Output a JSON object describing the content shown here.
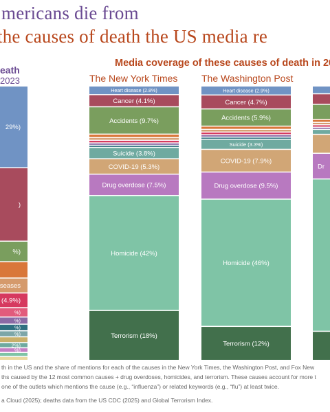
{
  "title_line1": "mericans die from",
  "title_line2": "the causes of death the US media re",
  "left_heading": "eath",
  "left_subheading": "2023",
  "media_heading": "Media coverage of these causes of death in 20",
  "notes": [
    "th in the US and the share of mentions for each of the causes in the New York Times, the Washington Post, and Fox New",
    "ths caused by the 12 most common causes + drug overdoses, homicides, and terrorism. These causes account for more t",
    "one of the outlets which mentions the cause (e.g., “influenza”) or related keywords (e.g., “flu”) at least twice.",
    "a Cloud (2025); deaths data from the US CDC (2025) and Global Terrorism Index."
  ],
  "colors": {
    "heart": "#7093c4",
    "cancer": "#a84b5d",
    "accidents": "#7a9e5e",
    "suicide": "#6faaa0",
    "covid": "#d1a676",
    "overdose": "#b879c0",
    "homicide": "#7fc4a6",
    "terrorism": "#42704c",
    "alzheimers": "#d9773a",
    "kidney": "#d59a6c",
    "diabetes": "#d6395f"
  },
  "chart_data": {
    "type": "stacked-bar",
    "unit": "%",
    "columns": [
      {
        "name": "Deaths",
        "segments": [
          {
            "label": "29%",
            "value": 29,
            "color": "heart",
            "text": "29%)"
          },
          {
            "label": "",
            "value": 26,
            "color": "cancer",
            "text": ")"
          },
          {
            "label": "",
            "value": 7,
            "color": "accidents",
            "text": "%)"
          },
          {
            "label": "",
            "value": 5.5,
            "color": "alzheimers",
            "text": ""
          },
          {
            "label": "",
            "value": 5,
            "color": "kidney",
            "text": "iseases"
          },
          {
            "label": "4.9%",
            "value": 4.9,
            "color": "diabetes",
            "text": "e (4.9%)"
          },
          {
            "label": "",
            "value": 3,
            "color": "#e25b7c",
            "text": "%)"
          },
          {
            "label": "",
            "value": 2.2,
            "color": "#8b6aa5",
            "text": "%)"
          },
          {
            "label": "",
            "value": 2,
            "color": "#2f6f80",
            "text": "%)"
          },
          {
            "label": "",
            "value": 1.8,
            "color": "#7ca6a8",
            "text": "%)"
          },
          {
            "label": "",
            "value": 1.7,
            "color": "#c9b06b",
            "text": ""
          },
          {
            "label": "",
            "value": 1.5,
            "color": "suicide",
            "text": "2%)"
          },
          {
            "label": "",
            "value": 1.3,
            "color": "#c47fc4",
            "text": "%)"
          },
          {
            "label": "",
            "value": 1.1,
            "color": "homicide",
            "text": ""
          },
          {
            "label": "",
            "value": 1,
            "color": "#ead9a0",
            "text": ""
          }
        ]
      },
      {
        "name": "The New York Times",
        "segments": [
          {
            "label": "Heart disease",
            "value": 2.8,
            "color": "heart",
            "text": "Heart disease (2.8%)"
          },
          {
            "label": "Cancer",
            "value": 4.1,
            "color": "cancer",
            "text": "Cancer (4.1%)"
          },
          {
            "label": "Accidents",
            "value": 9.7,
            "color": "accidents",
            "text": "Accidents (9.7%)"
          },
          {
            "label": "",
            "value": 0.9,
            "color": "alzheimers",
            "text": ""
          },
          {
            "label": "",
            "value": 0.6,
            "color": "kidney",
            "text": ""
          },
          {
            "label": "",
            "value": 0.6,
            "color": "diabetes",
            "text": ""
          },
          {
            "label": "",
            "value": 0.5,
            "color": "#8b6aa5",
            "text": ""
          },
          {
            "label": "",
            "value": 0.4,
            "color": "#2f6f80",
            "text": ""
          },
          {
            "label": "Suicide",
            "value": 3.8,
            "color": "suicide",
            "text": "Suicide (3.8%)"
          },
          {
            "label": "COVID-19",
            "value": 5.3,
            "color": "covid",
            "text": "COVID-19 (5.3%)"
          },
          {
            "label": "Drug overdose",
            "value": 7.5,
            "color": "overdose",
            "text": "Drug overdose (7.5%)"
          },
          {
            "label": "Homicide",
            "value": 42,
            "color": "homicide",
            "text": "Homicide (42%)"
          },
          {
            "label": "Terrorism",
            "value": 18,
            "color": "terrorism",
            "text": "Terrorism (18%)"
          }
        ]
      },
      {
        "name": "The Washington Post",
        "segments": [
          {
            "label": "Heart disease",
            "value": 2.9,
            "color": "heart",
            "text": "Heart disease (2.9%)"
          },
          {
            "label": "Cancer",
            "value": 4.7,
            "color": "cancer",
            "text": "Cancer (4.7%)"
          },
          {
            "label": "Accidents",
            "value": 5.9,
            "color": "accidents",
            "text": "Accidents (5.9%)"
          },
          {
            "label": "",
            "value": 0.8,
            "color": "alzheimers",
            "text": ""
          },
          {
            "label": "",
            "value": 0.6,
            "color": "kidney",
            "text": ""
          },
          {
            "label": "",
            "value": 0.6,
            "color": "diabetes",
            "text": ""
          },
          {
            "label": "",
            "value": 0.5,
            "color": "#8b6aa5",
            "text": ""
          },
          {
            "label": "",
            "value": 0.4,
            "color": "#2f6f80",
            "text": ""
          },
          {
            "label": "Suicide",
            "value": 3.3,
            "color": "suicide",
            "text": "Suicide (3.3%)"
          },
          {
            "label": "COVID-19",
            "value": 7.9,
            "color": "covid",
            "text": "COVID-19 (7.9%)"
          },
          {
            "label": "Drug overdose",
            "value": 9.5,
            "color": "overdose",
            "text": "Drug overdose (9.5%)"
          },
          {
            "label": "Homicide",
            "value": 46,
            "color": "homicide",
            "text": "Homicide (46%)"
          },
          {
            "label": "Terrorism",
            "value": 12,
            "color": "terrorism",
            "text": "Terrorism (12%)"
          }
        ]
      },
      {
        "name": "",
        "segments": [
          {
            "label": "",
            "value": 2.4,
            "color": "heart",
            "text": ""
          },
          {
            "label": "",
            "value": 3.4,
            "color": "cancer",
            "text": ""
          },
          {
            "label": "",
            "value": 5,
            "color": "accidents",
            "text": ""
          },
          {
            "label": "",
            "value": 0.7,
            "color": "alzheimers",
            "text": ""
          },
          {
            "label": "",
            "value": 0.5,
            "color": "kidney",
            "text": ""
          },
          {
            "label": "",
            "value": 0.5,
            "color": "diabetes",
            "text": ""
          },
          {
            "label": "",
            "value": 0.4,
            "color": "#8b6aa5",
            "text": ""
          },
          {
            "label": "",
            "value": 1.4,
            "color": "suicide",
            "text": ""
          },
          {
            "label": "",
            "value": 6.4,
            "color": "covid",
            "text": ""
          },
          {
            "label": "",
            "value": 8.8,
            "color": "overdose",
            "text": "Dr"
          },
          {
            "label": "",
            "value": 54,
            "color": "homicide",
            "text": ""
          },
          {
            "label": "",
            "value": 10,
            "color": "terrorism",
            "text": ""
          }
        ]
      }
    ]
  }
}
